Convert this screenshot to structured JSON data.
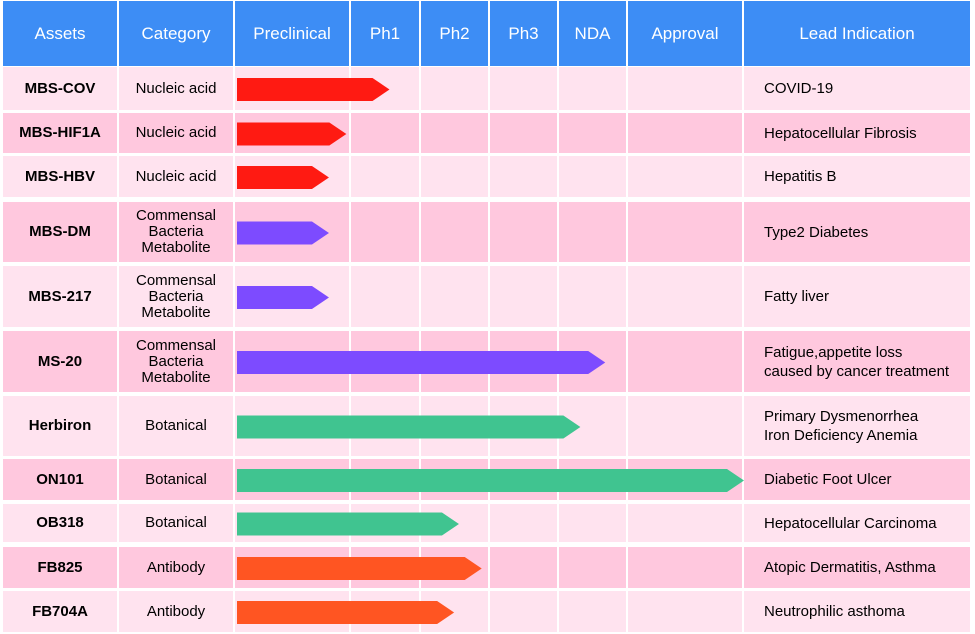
{
  "colors": {
    "header": "#3d8df5",
    "row_even": "#ffe3ef",
    "row_odd": "#ffc8de",
    "nucleic": "#ff1a12",
    "commensal": "#7d4bff",
    "botanical": "#40c490",
    "antibody": "#ff5522"
  },
  "headers": [
    "Assets",
    "Category",
    "Preclinical",
    "Ph1",
    "Ph2",
    "Ph3",
    "NDA",
    "Approval",
    "Lead Indication"
  ],
  "chart_data": {
    "type": "table",
    "stages": [
      "Preclinical",
      "Ph1",
      "Ph2",
      "Ph3",
      "NDA",
      "Approval"
    ],
    "rows": [
      {
        "asset": "MBS-COV",
        "category": "Nucleic acid",
        "progress": 1.55,
        "color": "#ff1a12",
        "indication": "COVID-19"
      },
      {
        "asset": "MBS-HIF1A",
        "category": "Nucleic acid",
        "progress": 0.96,
        "color": "#ff1a12",
        "indication": "Hepatocellular Fibrosis"
      },
      {
        "asset": "MBS-HBV",
        "category": "Nucleic acid",
        "progress": 0.81,
        "color": "#ff1a12",
        "indication": "Hepatitis B"
      },
      {
        "asset": "MBS-DM",
        "category": "Commensal\nBacteria\nMetabolite",
        "progress": 0.81,
        "color": "#7d4bff",
        "indication": "Type2 Diabetes"
      },
      {
        "asset": "MBS-217",
        "category": "Commensal\nBacteria\nMetabolite",
        "progress": 0.81,
        "color": "#7d4bff",
        "indication": "Fatty liver"
      },
      {
        "asset": "MS-20",
        "category": "Commensal\nBacteria\nMetabolite",
        "progress": 4.67,
        "color": "#7d4bff",
        "indication": "Fatigue,appetite loss\ncaused by cancer treatment"
      },
      {
        "asset": "Herbiron",
        "category": "Botanical",
        "progress": 4.31,
        "color": "#40c490",
        "indication": "Primary     Dysmenorrhea\nIron Deficiency Anemia"
      },
      {
        "asset": "ON101",
        "category": "Botanical",
        "progress": 6.0,
        "color": "#40c490",
        "indication": "Diabetic Foot Ulcer"
      },
      {
        "asset": "OB318",
        "category": "Botanical",
        "progress": 2.55,
        "color": "#40c490",
        "indication": "Hepatocellular  Carcinoma"
      },
      {
        "asset": "FB825",
        "category": "Antibody",
        "progress": 2.88,
        "color": "#ff5522",
        "indication": "Atopic Dermatitis, Asthma"
      },
      {
        "asset": "FB704A",
        "category": "Antibody",
        "progress": 2.48,
        "color": "#ff5522",
        "indication": "Neutrophilic asthoma"
      }
    ]
  }
}
